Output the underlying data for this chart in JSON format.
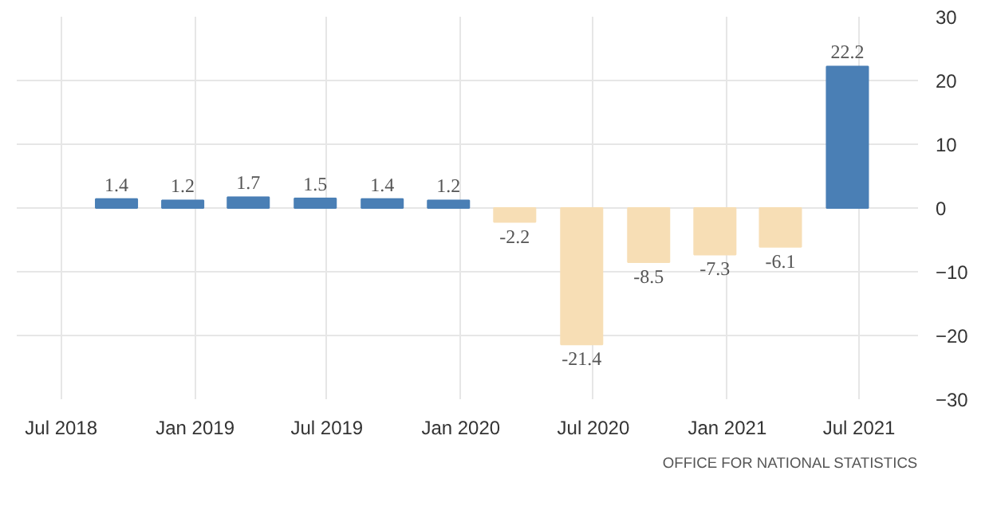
{
  "chart_data": {
    "type": "bar",
    "x": [
      "2018-09-15",
      "2018-12-15",
      "2019-03-15",
      "2019-06-15",
      "2019-09-15",
      "2019-12-15",
      "2020-03-15",
      "2020-06-15",
      "2020-09-15",
      "2020-12-15",
      "2021-03-15",
      "2021-06-15"
    ],
    "values": [
      1.4,
      1.2,
      1.7,
      1.5,
      1.4,
      1.2,
      -2.2,
      -21.4,
      -8.5,
      -7.3,
      -6.1,
      22.2
    ],
    "colors": [
      "#4a7fb5",
      "#4a7fb5",
      "#4a7fb5",
      "#4a7fb5",
      "#4a7fb5",
      "#4a7fb5",
      "#f7deb5",
      "#f7deb5",
      "#f7deb5",
      "#f7deb5",
      "#f7deb5",
      "#4a7fb5"
    ],
    "data_labels": true,
    "xlim": [
      "2018-05-01",
      "2021-09-20"
    ],
    "xticks": [
      {
        "value": "2018-07-01",
        "label": "Jul 2018"
      },
      {
        "value": "2019-01-01",
        "label": "Jan 2019"
      },
      {
        "value": "2019-07-01",
        "label": "Jul 2019"
      },
      {
        "value": "2020-01-01",
        "label": "Jan 2020"
      },
      {
        "value": "2020-07-01",
        "label": "Jul 2020"
      },
      {
        "value": "2021-01-01",
        "label": "Jan 2021"
      },
      {
        "value": "2021-07-01",
        "label": "Jul 2021"
      }
    ],
    "ylim": [
      -30,
      30
    ],
    "yticks": [
      -30,
      -20,
      -10,
      0,
      10,
      20,
      30
    ],
    "grid": true,
    "annotations": [
      "OFFICE FOR NATIONAL STATISTICS"
    ]
  }
}
